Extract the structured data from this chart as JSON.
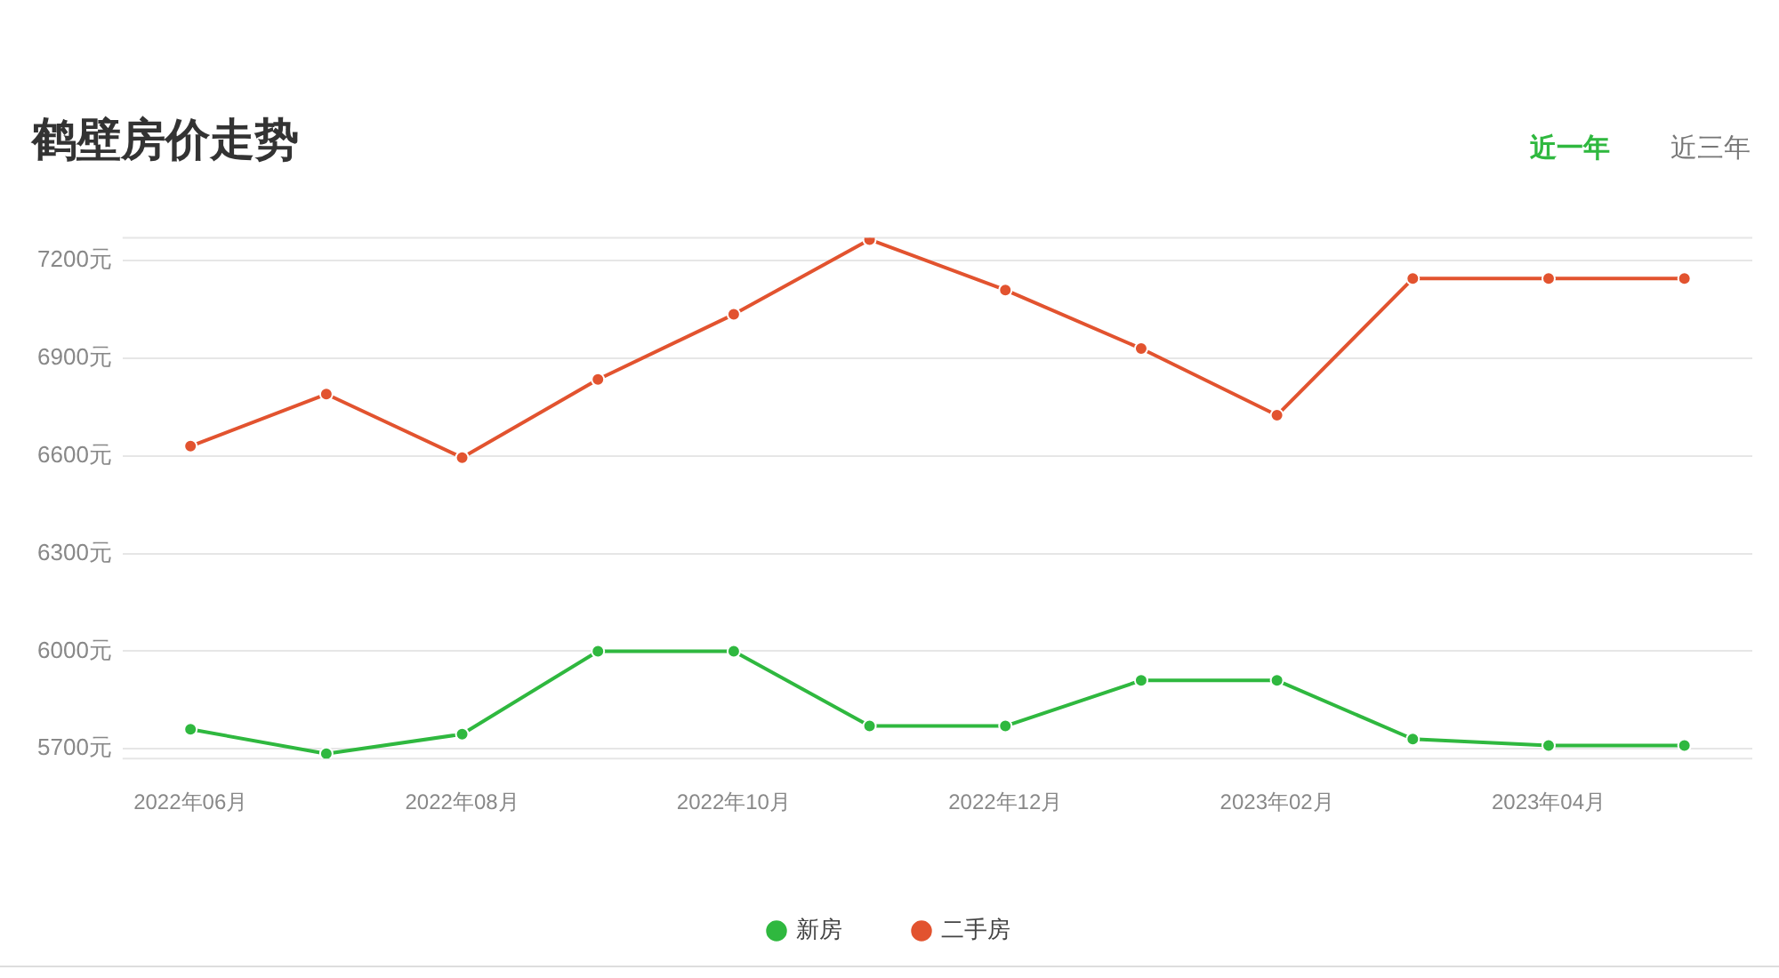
{
  "chart_data": {
    "type": "line",
    "title": "鹤壁房价走势",
    "annotations": [
      "近一年",
      "近三年"
    ],
    "categories": [
      "2022年06月",
      null,
      "2022年08月",
      null,
      "2022年10月",
      null,
      "2022年12月",
      null,
      "2023年02月",
      null,
      "2023年04月",
      null
    ],
    "series": [
      {
        "name": "新房",
        "color": "#2fb83f",
        "values": [
          5760,
          5685,
          5745,
          6000,
          6000,
          5770,
          5770,
          5910,
          5910,
          5730,
          5710,
          5710
        ]
      },
      {
        "name": "二手房",
        "color": "#e2532f",
        "values": [
          6630,
          6790,
          6595,
          6835,
          7035,
          7265,
          7110,
          6930,
          6725,
          7145,
          7145,
          7145
        ]
      }
    ],
    "ylim": [
      5670,
      7270
    ],
    "yticks": [
      {
        "value": 5700,
        "label": "5700元"
      },
      {
        "value": 6000,
        "label": "6000元"
      },
      {
        "value": 6300,
        "label": "6300元"
      },
      {
        "value": 6600,
        "label": "6600元"
      },
      {
        "value": 6900,
        "label": "6900元"
      },
      {
        "value": 7200,
        "label": "7200元"
      }
    ],
    "grid": "y",
    "legend": "bottom",
    "marker": "circle",
    "line_style": "solid"
  }
}
